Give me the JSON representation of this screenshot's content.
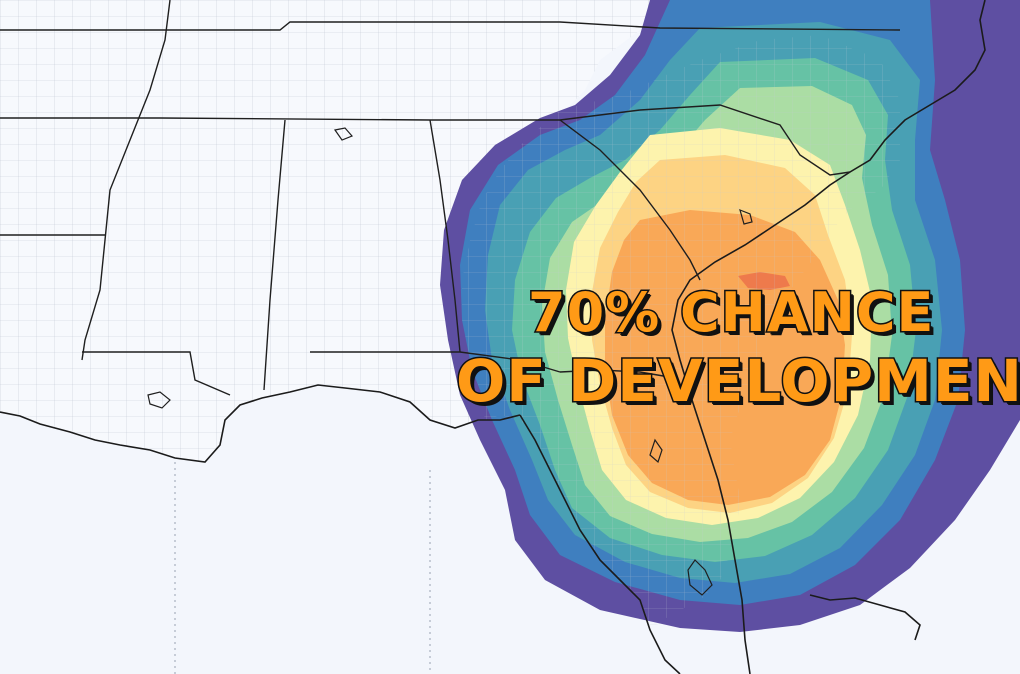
{
  "overlay": {
    "line1": "70% CHANCE",
    "line2": "OF DEVELOPMENT"
  },
  "colors": {
    "background_ocean": "#f3f6fc",
    "land": "#f6f8fc",
    "state_border": "#222222",
    "county_border": "#bcc4d0",
    "headline_fill": "#ff9a16",
    "headline_outline": "#111111"
  },
  "probability_scale": [
    {
      "level": "lowest",
      "color": "#5e4fa2"
    },
    {
      "level": "very-low",
      "color": "#3f7fbf"
    },
    {
      "level": "low",
      "color": "#49a0b4"
    },
    {
      "level": "low-mid",
      "color": "#66c2a5"
    },
    {
      "level": "mid",
      "color": "#abdda4"
    },
    {
      "level": "mid-high",
      "color": "#fdf3ad"
    },
    {
      "level": "high",
      "color": "#fdd383"
    },
    {
      "level": "very-high",
      "color": "#f9a857"
    },
    {
      "level": "peak",
      "color": "#ee7a4c"
    }
  ]
}
